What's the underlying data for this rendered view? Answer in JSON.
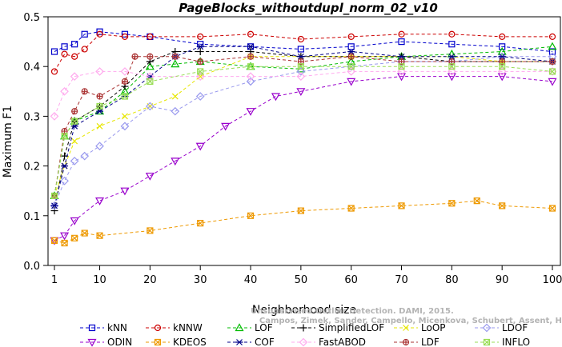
{
  "chart_data": {
    "type": "line",
    "title": "PageBlocks_withoutdupl_norm_02_v10",
    "xlabel": "Neighborhood size",
    "ylabel": "Maximum F1",
    "xlim": [
      1,
      100
    ],
    "ylim": [
      0,
      0.5
    ],
    "xticks": [
      1,
      10,
      20,
      30,
      40,
      50,
      60,
      70,
      80,
      90,
      100
    ],
    "yticks": [
      0.0,
      0.1,
      0.2,
      0.3,
      0.4,
      0.5
    ],
    "ytick_labels": [
      "0.0",
      "0.1",
      "0.2",
      "0.3",
      "0.4",
      "0.5"
    ],
    "grid": false,
    "legend_position": "bottom",
    "watermark": [
      "Unsupervised Outlier Detection. DAMI, 2015.",
      "Campos, Zimek, Sander, Campello, Micenkova, Schubert, Assent, Houle"
    ],
    "series": [
      {
        "name": "kNN",
        "color": "#0000cc",
        "marker": "square",
        "x": [
          1,
          3,
          5,
          7,
          10,
          15,
          20,
          30,
          40,
          50,
          60,
          70,
          80,
          90,
          100
        ],
        "y": [
          0.43,
          0.44,
          0.445,
          0.465,
          0.47,
          0.465,
          0.46,
          0.445,
          0.44,
          0.435,
          0.44,
          0.45,
          0.445,
          0.44,
          0.43
        ]
      },
      {
        "name": "kNNW",
        "color": "#cc0000",
        "marker": "circle",
        "x": [
          1,
          3,
          5,
          7,
          10,
          15,
          20,
          30,
          40,
          50,
          60,
          70,
          80,
          90,
          100
        ],
        "y": [
          0.39,
          0.425,
          0.42,
          0.435,
          0.465,
          0.46,
          0.46,
          0.46,
          0.465,
          0.455,
          0.46,
          0.465,
          0.465,
          0.46,
          0.46
        ]
      },
      {
        "name": "LOF",
        "color": "#00bb00",
        "marker": "triangle",
        "x": [
          1,
          3,
          5,
          10,
          15,
          20,
          25,
          30,
          40,
          50,
          60,
          70,
          80,
          90,
          100
        ],
        "y": [
          0.14,
          0.26,
          0.29,
          0.31,
          0.35,
          0.4,
          0.405,
          0.41,
          0.4,
          0.395,
          0.41,
          0.42,
          0.425,
          0.43,
          0.44
        ]
      },
      {
        "name": "SimplifiedLOF",
        "color": "#000000",
        "marker": "plus",
        "x": [
          1,
          3,
          5,
          10,
          15,
          20,
          25,
          30,
          40,
          50,
          60,
          70,
          80,
          90,
          100
        ],
        "y": [
          0.11,
          0.22,
          0.29,
          0.32,
          0.36,
          0.41,
          0.43,
          0.43,
          0.43,
          0.42,
          0.42,
          0.42,
          0.41,
          0.41,
          0.41
        ]
      },
      {
        "name": "LoOP",
        "color": "#e6e600",
        "marker": "x",
        "x": [
          1,
          3,
          5,
          10,
          15,
          20,
          25,
          30,
          40,
          50,
          60,
          70,
          80,
          90,
          100
        ],
        "y": [
          0.14,
          0.2,
          0.25,
          0.28,
          0.3,
          0.32,
          0.34,
          0.38,
          0.42,
          0.42,
          0.42,
          0.42,
          0.42,
          0.41,
          0.41
        ]
      },
      {
        "name": "LDOF",
        "color": "#9999ee",
        "marker": "diamond",
        "x": [
          1,
          3,
          5,
          7,
          10,
          15,
          20,
          25,
          30,
          40,
          50,
          60,
          70,
          80,
          90,
          100
        ],
        "y": [
          0.12,
          0.17,
          0.21,
          0.22,
          0.24,
          0.28,
          0.32,
          0.31,
          0.34,
          0.37,
          0.39,
          0.4,
          0.41,
          0.41,
          0.42,
          0.42
        ]
      },
      {
        "name": "ODIN",
        "color": "#9900cc",
        "marker": "triangle-down",
        "x": [
          1,
          3,
          5,
          10,
          15,
          20,
          25,
          30,
          35,
          40,
          45,
          50,
          60,
          70,
          80,
          90,
          100
        ],
        "y": [
          0.05,
          0.06,
          0.09,
          0.13,
          0.15,
          0.18,
          0.21,
          0.24,
          0.28,
          0.31,
          0.34,
          0.35,
          0.37,
          0.38,
          0.38,
          0.38,
          0.37
        ]
      },
      {
        "name": "KDEOS",
        "color": "#ee9900",
        "marker": "square-x",
        "x": [
          1,
          3,
          5,
          7,
          10,
          20,
          30,
          40,
          50,
          60,
          70,
          80,
          85,
          90,
          100
        ],
        "y": [
          0.05,
          0.045,
          0.055,
          0.065,
          0.06,
          0.07,
          0.085,
          0.1,
          0.11,
          0.115,
          0.12,
          0.125,
          0.13,
          0.12,
          0.115
        ]
      },
      {
        "name": "COF",
        "color": "#000088",
        "marker": "asterisk",
        "x": [
          1,
          3,
          5,
          10,
          15,
          20,
          25,
          30,
          40,
          50,
          60,
          70,
          80,
          90,
          100
        ],
        "y": [
          0.12,
          0.2,
          0.28,
          0.31,
          0.34,
          0.38,
          0.42,
          0.44,
          0.44,
          0.42,
          0.43,
          0.42,
          0.42,
          0.42,
          0.41
        ]
      },
      {
        "name": "FastABOD",
        "color": "#ffaaee",
        "marker": "diamond",
        "x": [
          1,
          3,
          5,
          10,
          15,
          20,
          30,
          40,
          50,
          60,
          70,
          80,
          90,
          100
        ],
        "y": [
          0.3,
          0.35,
          0.38,
          0.39,
          0.39,
          0.38,
          0.38,
          0.38,
          0.38,
          0.39,
          0.39,
          0.39,
          0.39,
          0.39
        ]
      },
      {
        "name": "LDF",
        "color": "#aa3333",
        "marker": "circle-plus",
        "x": [
          1,
          3,
          5,
          7,
          10,
          15,
          17,
          20,
          25,
          30,
          40,
          50,
          60,
          70,
          80,
          90,
          100
        ],
        "y": [
          0.14,
          0.27,
          0.31,
          0.35,
          0.34,
          0.37,
          0.42,
          0.42,
          0.42,
          0.41,
          0.42,
          0.41,
          0.42,
          0.41,
          0.41,
          0.41,
          0.41
        ]
      },
      {
        "name": "INFLO",
        "color": "#99dd55",
        "marker": "square-x",
        "x": [
          1,
          3,
          5,
          10,
          15,
          20,
          30,
          40,
          50,
          60,
          70,
          80,
          90,
          100
        ],
        "y": [
          0.14,
          0.26,
          0.29,
          0.32,
          0.34,
          0.37,
          0.39,
          0.4,
          0.4,
          0.4,
          0.4,
          0.4,
          0.4,
          0.39
        ]
      }
    ]
  }
}
